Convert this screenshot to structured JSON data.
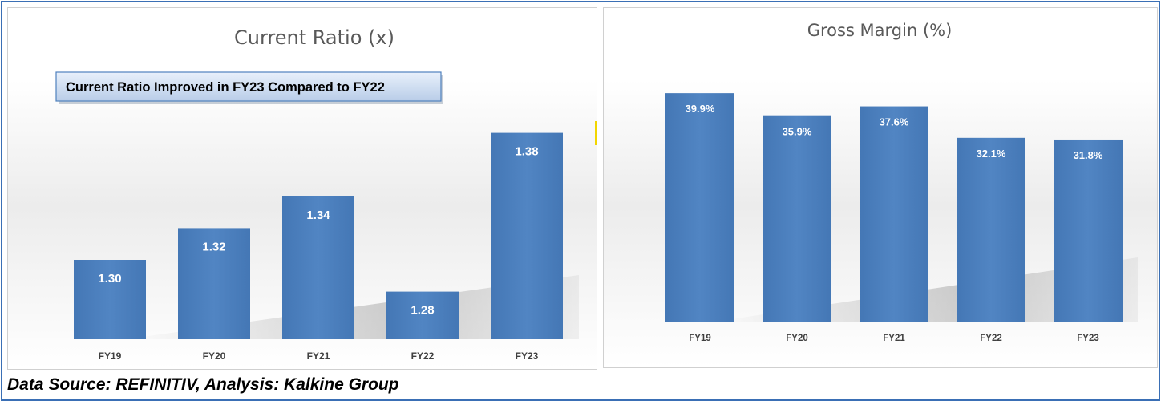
{
  "footer": {
    "source_text": "Data Source: REFINITIV, Analysis: Kalkine Group"
  },
  "colors": {
    "bar": "#4f81bd",
    "bar_dark": "#3d6aa5",
    "frame": "#3a6fb5"
  },
  "chart_data": [
    {
      "type": "bar",
      "title": "Current Ratio (x)",
      "annotation": "Current Ratio Improved in FY23 Compared to FY22",
      "categories": [
        "FY19",
        "FY20",
        "FY21",
        "FY22",
        "FY23"
      ],
      "values": [
        1.3,
        1.32,
        1.34,
        1.28,
        1.38
      ],
      "data_labels": [
        "1.30",
        "1.32",
        "1.34",
        "1.28",
        "1.38"
      ],
      "ylim": [
        1.25,
        1.4
      ],
      "grid": false,
      "legend": "none"
    },
    {
      "type": "bar",
      "title": "Gross Margin (%)",
      "categories": [
        "FY19",
        "FY20",
        "FY21",
        "FY22",
        "FY23"
      ],
      "values": [
        39.9,
        35.9,
        37.6,
        32.1,
        31.8
      ],
      "data_labels": [
        "39.9%",
        "35.9%",
        "37.6%",
        "32.1%",
        "31.8%"
      ],
      "ylim": [
        0,
        43.0
      ],
      "grid": false,
      "legend": "none"
    }
  ]
}
